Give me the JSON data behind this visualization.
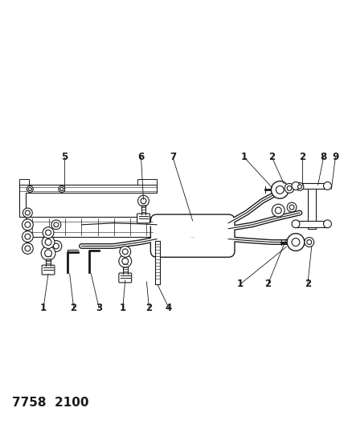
{
  "title": "7758  2100",
  "bg_color": "#ffffff",
  "line_color": "#1a1a1a",
  "title_fontsize": 11,
  "fig_width": 4.28,
  "fig_height": 5.33,
  "dpi": 100
}
